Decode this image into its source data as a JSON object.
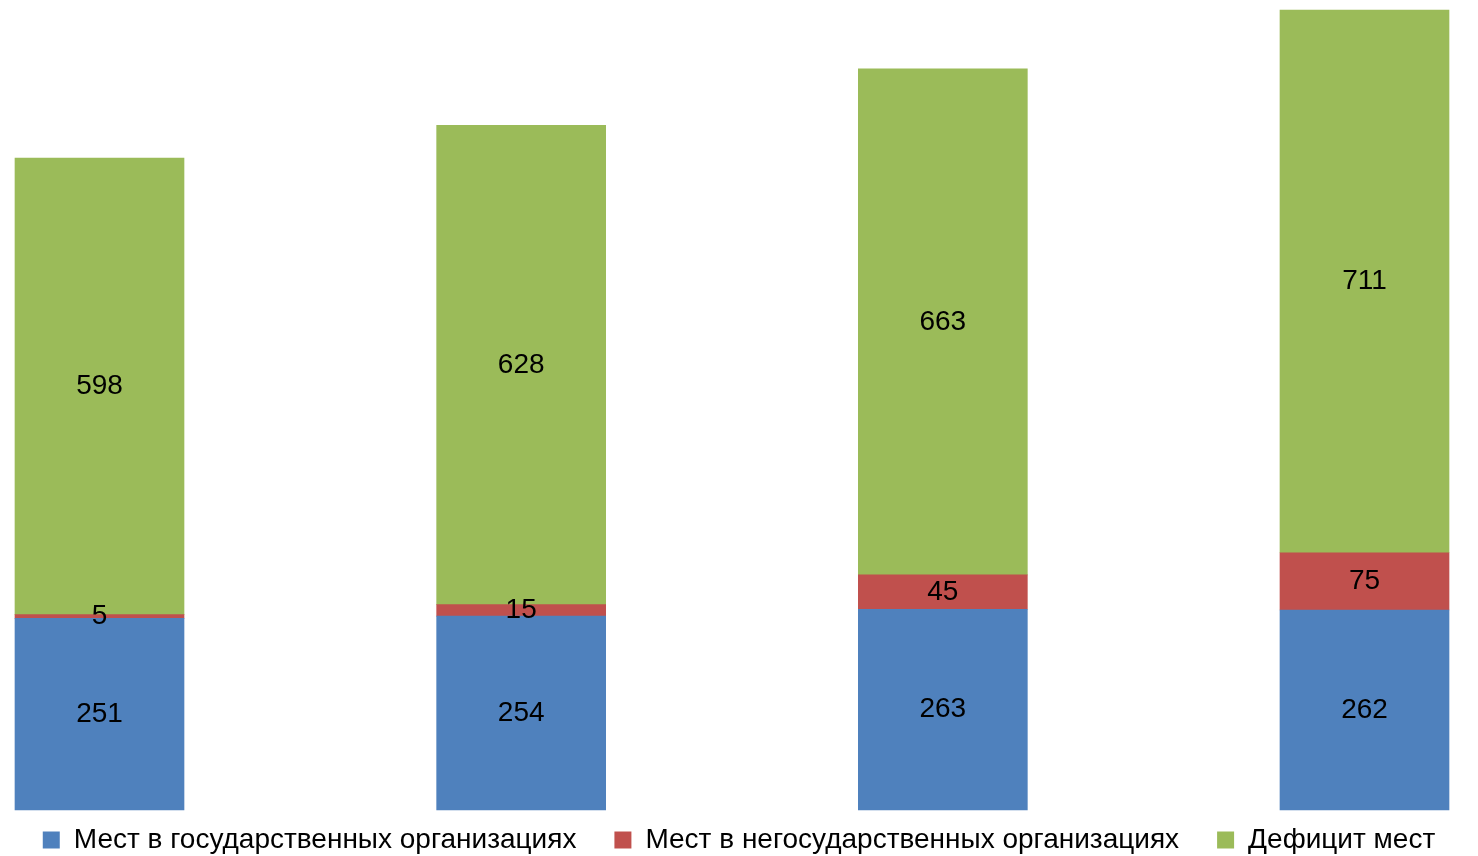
{
  "chart_data": {
    "type": "bar",
    "stacked": true,
    "categories": [
      null,
      null,
      null,
      null
    ],
    "series": [
      {
        "name": "Мест в государственных организациях",
        "color": "#4f81bd",
        "values": [
          251,
          254,
          263,
          262
        ]
      },
      {
        "name": "Мест в негосударственных организациях",
        "color": "#c0504d",
        "values": [
          5,
          15,
          45,
          75
        ]
      },
      {
        "name": "Дефицит мест",
        "color": "#9bbb59",
        "values": [
          598,
          628,
          663,
          711
        ]
      }
    ],
    "data_labels": true,
    "legend": "bottom"
  }
}
